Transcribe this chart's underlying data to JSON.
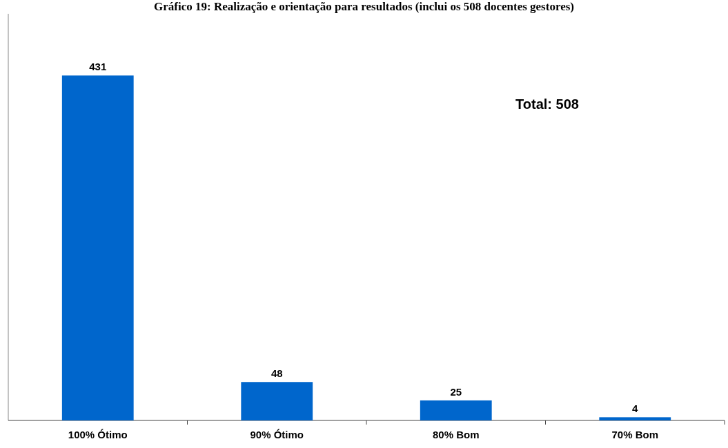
{
  "chart_data": {
    "type": "bar",
    "title": "Gráfico 19: Realização e orientação para resultados (inclui os 508 docentes gestores)",
    "categories": [
      "100% Ótimo",
      "90% Ótimo",
      "80% Bom",
      "70% Bom"
    ],
    "values": [
      431,
      48,
      25,
      4
    ],
    "color": "#0066cc",
    "data_labels": true,
    "annotations": [
      "Total: 508"
    ]
  }
}
